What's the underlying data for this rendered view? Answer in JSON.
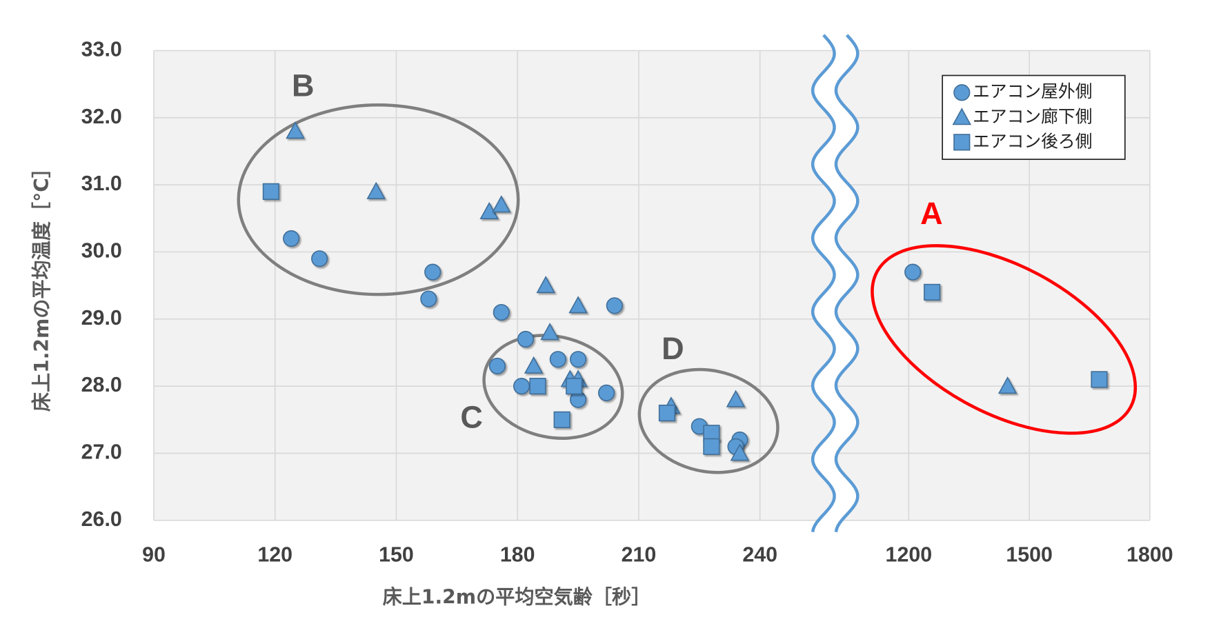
{
  "chart_data": {
    "type": "scatter",
    "x_label": "床上1.2mの平均空気齢［秒］",
    "y_label": "床上1.2mの平均温度［°C］",
    "x_segments": [
      {
        "xlim": [
          90,
          254
        ],
        "xticks": [
          90,
          120,
          150,
          180,
          210,
          240
        ]
      },
      {
        "xlim": [
          1075,
          1800
        ],
        "xticks": [
          1200,
          1500,
          1800
        ]
      }
    ],
    "ylim": [
      26,
      33
    ],
    "yticks": [
      {
        "value": 26,
        "label": "26.0"
      },
      {
        "value": 27,
        "label": "27.0"
      },
      {
        "value": 28,
        "label": "28.0"
      },
      {
        "value": 29,
        "label": "29.0"
      },
      {
        "value": 30,
        "label": "30.0"
      },
      {
        "value": 31,
        "label": "31.0"
      },
      {
        "value": 32,
        "label": "32.0"
      },
      {
        "value": 33,
        "label": "33.0"
      }
    ],
    "grid": true,
    "legend": "upper right",
    "series": [
      {
        "name": "エアコン屋外側",
        "color": "#5b9bd5",
        "marker": "circle",
        "x": [
          124,
          131,
          159,
          158,
          176,
          182,
          175,
          181,
          190,
          195,
          195,
          202,
          204,
          225,
          235,
          234,
          1210
        ],
        "values": [
          30.2,
          29.9,
          29.7,
          29.3,
          29.1,
          28.7,
          28.3,
          28.0,
          28.4,
          28.4,
          27.8,
          27.9,
          29.2,
          27.4,
          27.2,
          27.1,
          29.7
        ]
      },
      {
        "name": "エアコン廊下側",
        "color": "#5b9bd5",
        "marker": "triangle",
        "x": [
          125,
          145,
          173,
          176,
          187,
          195,
          188,
          184,
          193,
          195,
          218,
          234,
          235,
          1446
        ],
        "values": [
          31.8,
          30.9,
          30.6,
          30.7,
          29.5,
          29.2,
          28.8,
          28.3,
          28.1,
          28.1,
          27.7,
          27.8,
          27.0,
          28.0
        ]
      },
      {
        "name": "エアコン後ろ側",
        "color": "#5b9bd5",
        "marker": "square",
        "x": [
          119,
          185,
          194,
          191,
          217,
          228,
          228,
          1258,
          1674
        ],
        "values": [
          30.9,
          28.0,
          28.0,
          27.5,
          27.6,
          27.3,
          27.1,
          29.4,
          28.1
        ]
      }
    ],
    "annotations": [
      {
        "text": "B",
        "color": "#595959"
      },
      {
        "text": "C",
        "color": "#595959"
      },
      {
        "text": "D",
        "color": "#595959"
      },
      {
        "text": "A",
        "color": "#ff0000"
      }
    ]
  }
}
